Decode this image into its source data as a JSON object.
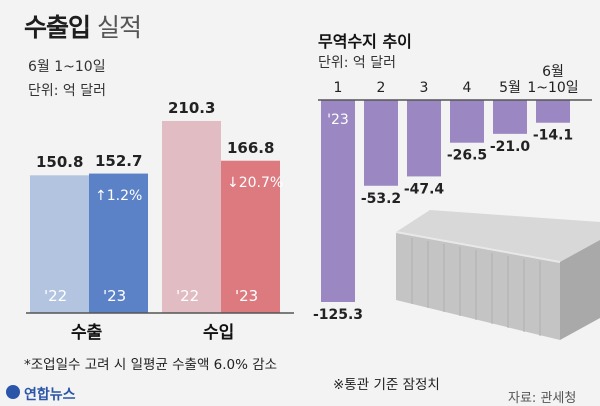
{
  "title_bold": "수출입",
  "title_light": "실적",
  "period": "6월 1~10일",
  "unit": "단위: 억 달러",
  "right_title": "무역수지 추이",
  "right_unit": "단위: 억 달러",
  "footnote": "*조업일수 고려 시 일평균 수출액 6.0% 감소",
  "right_footnote": "※통관 기준 잠정치",
  "source": "자료: 관세청",
  "logo": "연합뉴스",
  "colors": {
    "export_22": "#b3c4e1",
    "export_23": "#5b82c6",
    "import_22": "#e2bcc3",
    "import_23": "#dc7a80",
    "balance": "#9b88c2",
    "baseline": "#555555"
  },
  "chart_data": [
    {
      "type": "bar",
      "title": "수출입 실적",
      "subtitle": "6월 1~10일",
      "ylabel": "단위: 억 달러",
      "categories": [
        "수출",
        "수입"
      ],
      "series": [
        {
          "name": "'22",
          "values": [
            150.8,
            210.3
          ]
        },
        {
          "name": "'23",
          "values": [
            152.7,
            166.8
          ]
        }
      ],
      "changes": [
        "↑1.2%",
        "↓20.7%"
      ],
      "ylim": [
        0,
        230
      ]
    },
    {
      "type": "bar",
      "title": "무역수지 추이",
      "ylabel": "단위: 억 달러",
      "year_label": "'23",
      "categories": [
        "1",
        "2",
        "3",
        "4",
        "5월",
        "6월 1~10일"
      ],
      "values": [
        -125.3,
        -53.2,
        -47.4,
        -26.5,
        -21.0,
        -14.1
      ],
      "value_labels": [
        "-125.3",
        "-53.2",
        "-47.4",
        "-26.5",
        "-21.0",
        "-14.1"
      ],
      "ylim": [
        -130,
        0
      ]
    }
  ]
}
